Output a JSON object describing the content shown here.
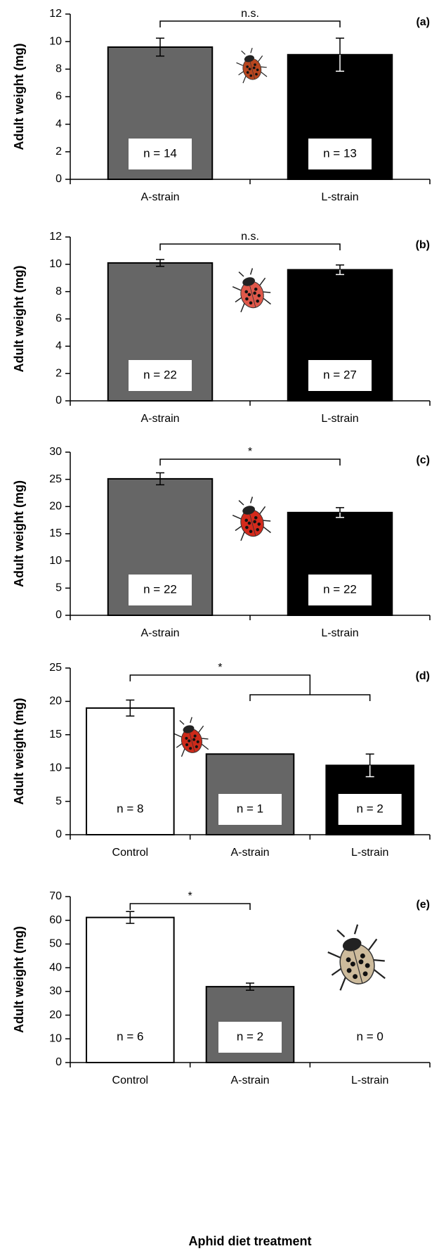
{
  "chart_data": [
    {
      "type": "bar",
      "panel_label": "(a)",
      "y_label": "Adult weight (mg)",
      "categories": [
        "A-strain",
        "L-strain"
      ],
      "values": [
        9.6,
        9.05
      ],
      "errors": [
        0.65,
        1.2
      ],
      "colors": [
        "#666666",
        "#000000"
      ],
      "sample_labels": [
        "n = 14",
        "n = 13"
      ],
      "significance": "n.s.",
      "ylim": [
        0,
        12
      ],
      "yticks": [
        0,
        2,
        4,
        6,
        8,
        10,
        12
      ]
    },
    {
      "type": "bar",
      "panel_label": "(b)",
      "y_label": "Adult weight (mg)",
      "categories": [
        "A-strain",
        "L-strain"
      ],
      "values": [
        10.1,
        9.6
      ],
      "errors": [
        0.25,
        0.35
      ],
      "colors": [
        "#666666",
        "#000000"
      ],
      "sample_labels": [
        "n = 22",
        "n = 27"
      ],
      "significance": "n.s.",
      "ylim": [
        0,
        12
      ],
      "yticks": [
        0,
        2,
        4,
        6,
        8,
        10,
        12
      ]
    },
    {
      "type": "bar",
      "panel_label": "(c)",
      "y_label": "Adult weight (mg)",
      "categories": [
        "A-strain",
        "L-strain"
      ],
      "values": [
        25.1,
        18.9
      ],
      "errors": [
        1.1,
        0.9
      ],
      "colors": [
        "#666666",
        "#000000"
      ],
      "sample_labels": [
        "n = 22",
        "n = 22"
      ],
      "significance": "*",
      "ylim": [
        0,
        30
      ],
      "yticks": [
        0,
        5,
        10,
        15,
        20,
        25,
        30
      ]
    },
    {
      "type": "bar",
      "panel_label": "(d)",
      "y_label": "Adult weight (mg)",
      "categories": [
        "Control",
        "A-strain",
        "L-strain"
      ],
      "values": [
        19.0,
        12.1,
        10.4
      ],
      "errors": [
        1.2,
        null,
        1.7
      ],
      "colors": [
        "#ffffff",
        "#666666",
        "#000000"
      ],
      "sample_labels": [
        "n = 8",
        "n = 1",
        "n = 2"
      ],
      "significance": "*",
      "ylim": [
        0,
        25
      ],
      "yticks": [
        0,
        5,
        10,
        15,
        20,
        25
      ]
    },
    {
      "type": "bar",
      "panel_label": "(e)",
      "y_label": "Adult weight (mg)",
      "x_label": "Aphid diet treatment",
      "categories": [
        "Control",
        "A-strain",
        "L-strain"
      ],
      "values": [
        61.2,
        32.0,
        null
      ],
      "errors": [
        2.5,
        1.5,
        null
      ],
      "colors": [
        "#ffffff",
        "#666666",
        "#000000"
      ],
      "sample_labels": [
        "n = 6",
        "n = 2",
        "n = 0"
      ],
      "significance": "*",
      "ylim": [
        0,
        70
      ],
      "yticks": [
        0,
        10,
        20,
        30,
        40,
        50,
        60,
        70
      ]
    }
  ]
}
